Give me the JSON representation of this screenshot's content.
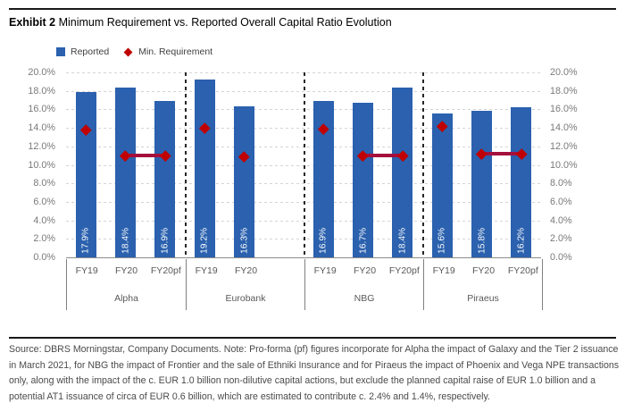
{
  "exhibit": {
    "label": "Exhibit 2",
    "title": "Minimum Requirement vs. Reported Overall Capital Ratio Evolution"
  },
  "legend": {
    "reported": "Reported",
    "min_requirement": "Min. Requirement"
  },
  "colors": {
    "bar": "#2B61AE",
    "marker": "#C00000",
    "connector": "#A50F3C"
  },
  "chart_data": {
    "type": "bar",
    "title": "Minimum Requirement vs. Reported Overall Capital Ratio Evolution",
    "xlabel": "",
    "ylabel": "",
    "ylim": [
      0,
      20
    ],
    "yticks": [
      0,
      2,
      4,
      6,
      8,
      10,
      12,
      14,
      16,
      18,
      20
    ],
    "ytick_labels": [
      "0.0%",
      "2.0%",
      "4.0%",
      "6.0%",
      "8.0%",
      "10.0%",
      "12.0%",
      "14.0%",
      "16.0%",
      "18.0%",
      "20.0%"
    ],
    "grid": "horizontal-dashed",
    "legend_position": "top-left",
    "series_names": [
      "Reported",
      "Min. Requirement"
    ],
    "groups": [
      {
        "name": "Alpha",
        "slots": 3,
        "bars": [
          {
            "period": "FY19",
            "reported": 17.9,
            "label": "17.9%",
            "min_requirement": 13.75
          },
          {
            "period": "FY20",
            "reported": 18.4,
            "label": "18.4%",
            "min_requirement": 11.0
          },
          {
            "period": "FY20pf",
            "reported": 16.9,
            "label": "16.9%",
            "min_requirement": 11.0
          }
        ],
        "connector": [
          1,
          2
        ]
      },
      {
        "name": "Eurobank",
        "slots": 3,
        "bars": [
          {
            "period": "FY19",
            "reported": 19.2,
            "label": "19.2%",
            "min_requirement": 14.0
          },
          {
            "period": "FY20",
            "reported": 16.3,
            "label": "16.3%",
            "min_requirement": 10.9
          }
        ],
        "connector": null
      },
      {
        "name": "NBG",
        "slots": 3,
        "bars": [
          {
            "period": "FY19",
            "reported": 16.9,
            "label": "16.9%",
            "min_requirement": 13.9
          },
          {
            "period": "FY20",
            "reported": 16.7,
            "label": "16.7%",
            "min_requirement": 11.0
          },
          {
            "period": "FY20pf",
            "reported": 18.4,
            "label": "18.4%",
            "min_requirement": 11.0
          }
        ],
        "connector": [
          1,
          2
        ]
      },
      {
        "name": "Piraeus",
        "slots": 3,
        "bars": [
          {
            "period": "FY19",
            "reported": 15.6,
            "label": "15.6%",
            "min_requirement": 14.2
          },
          {
            "period": "FY20",
            "reported": 15.8,
            "label": "15.8%",
            "min_requirement": 11.2
          },
          {
            "period": "FY20pf",
            "reported": 16.2,
            "label": "16.2%",
            "min_requirement": 11.2
          }
        ],
        "connector": [
          1,
          2
        ]
      }
    ]
  },
  "footer": {
    "source_note": "Source: DBRS Morningstar, Company Documents. Note: Pro-forma (pf) figures incorporate for Alpha the impact of Galaxy and the Tier 2 issuance in March 2021, for NBG the impact of Frontier and the sale of Ethniki Insurance and for Piraeus the impact of Phoenix and Vega NPE transactions only, along with the impact of the c. EUR 1.0 billion non-dilutive capital actions, but exclude the planned capital raise of EUR 1.0 billion and a potential AT1 issuance of circa of EUR 0.6 billion, which are estimated to contribute c. 2.4% and 1.4%, respectively."
  }
}
